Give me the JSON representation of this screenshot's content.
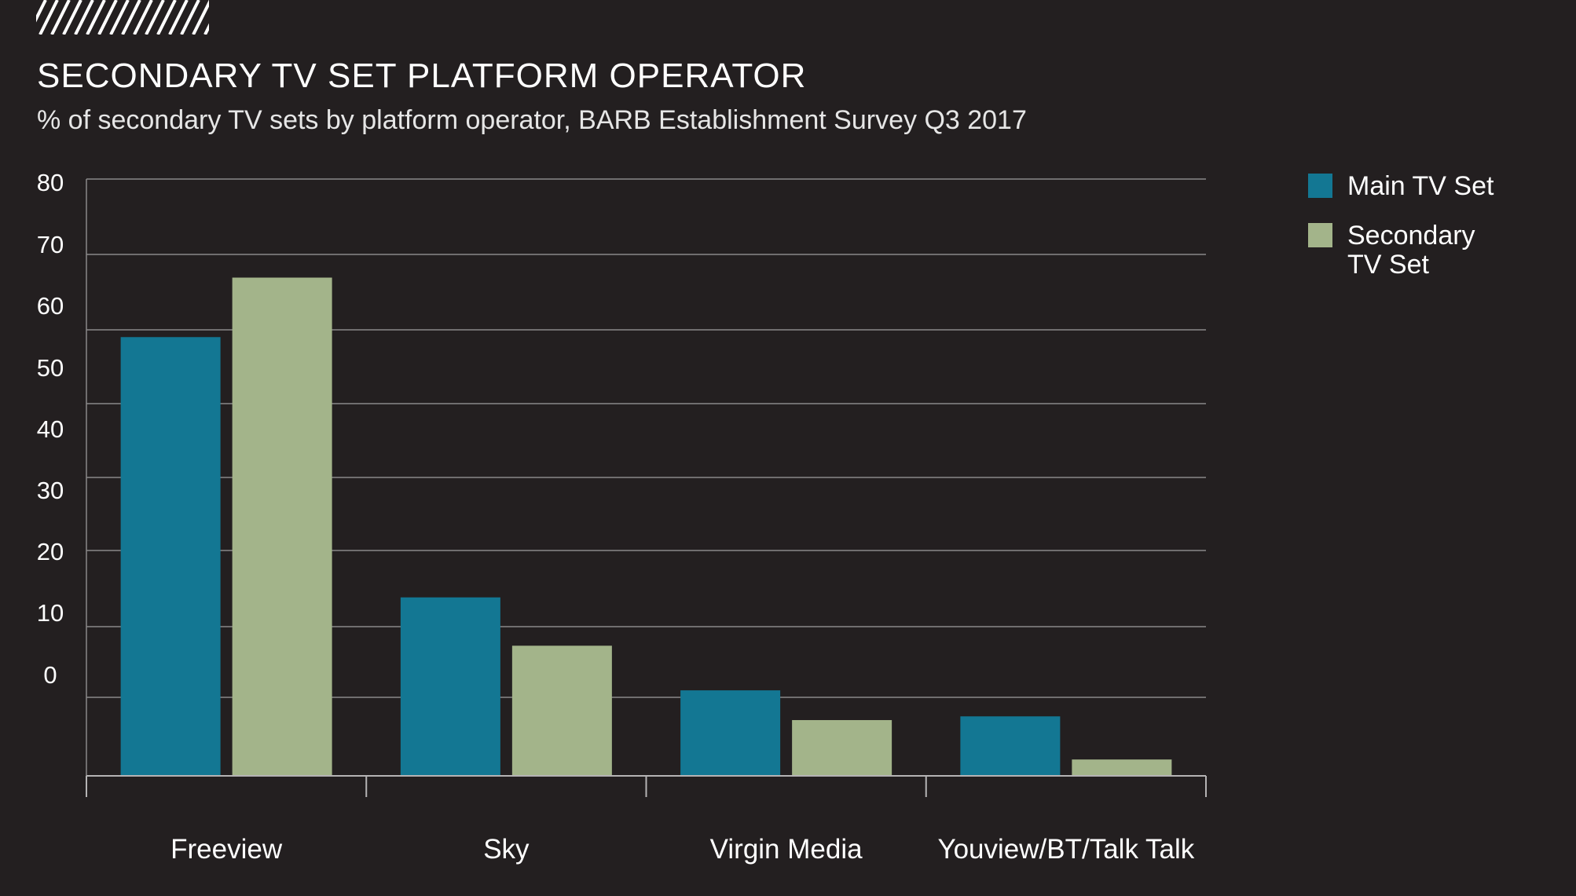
{
  "chart_data": {
    "type": "bar",
    "title": "SECONDARY TV SET PLATFORM OPERATOR",
    "subtitle": "% of secondary TV sets by platform operator, BARB Establishment Survey Q3 2017",
    "xlabel": "",
    "ylabel": "",
    "ylim": [
      0,
      80
    ],
    "y_ticks": [
      "80",
      "70",
      "60",
      "50",
      "40",
      "30",
      "20",
      "10",
      "0"
    ],
    "grid": true,
    "legend_position": "top-right",
    "categories": [
      "Freeview",
      "Sky",
      "Virgin Media",
      "Youview/BT/Talk Talk"
    ],
    "series": [
      {
        "name": "Main TV Set",
        "color": "#137793",
        "values": [
          59,
          24,
          11.5,
          8
        ]
      },
      {
        "name": "Secondary TV Set",
        "color": "#a3b48a",
        "values": [
          67,
          17.5,
          7.5,
          2.2
        ]
      }
    ]
  }
}
